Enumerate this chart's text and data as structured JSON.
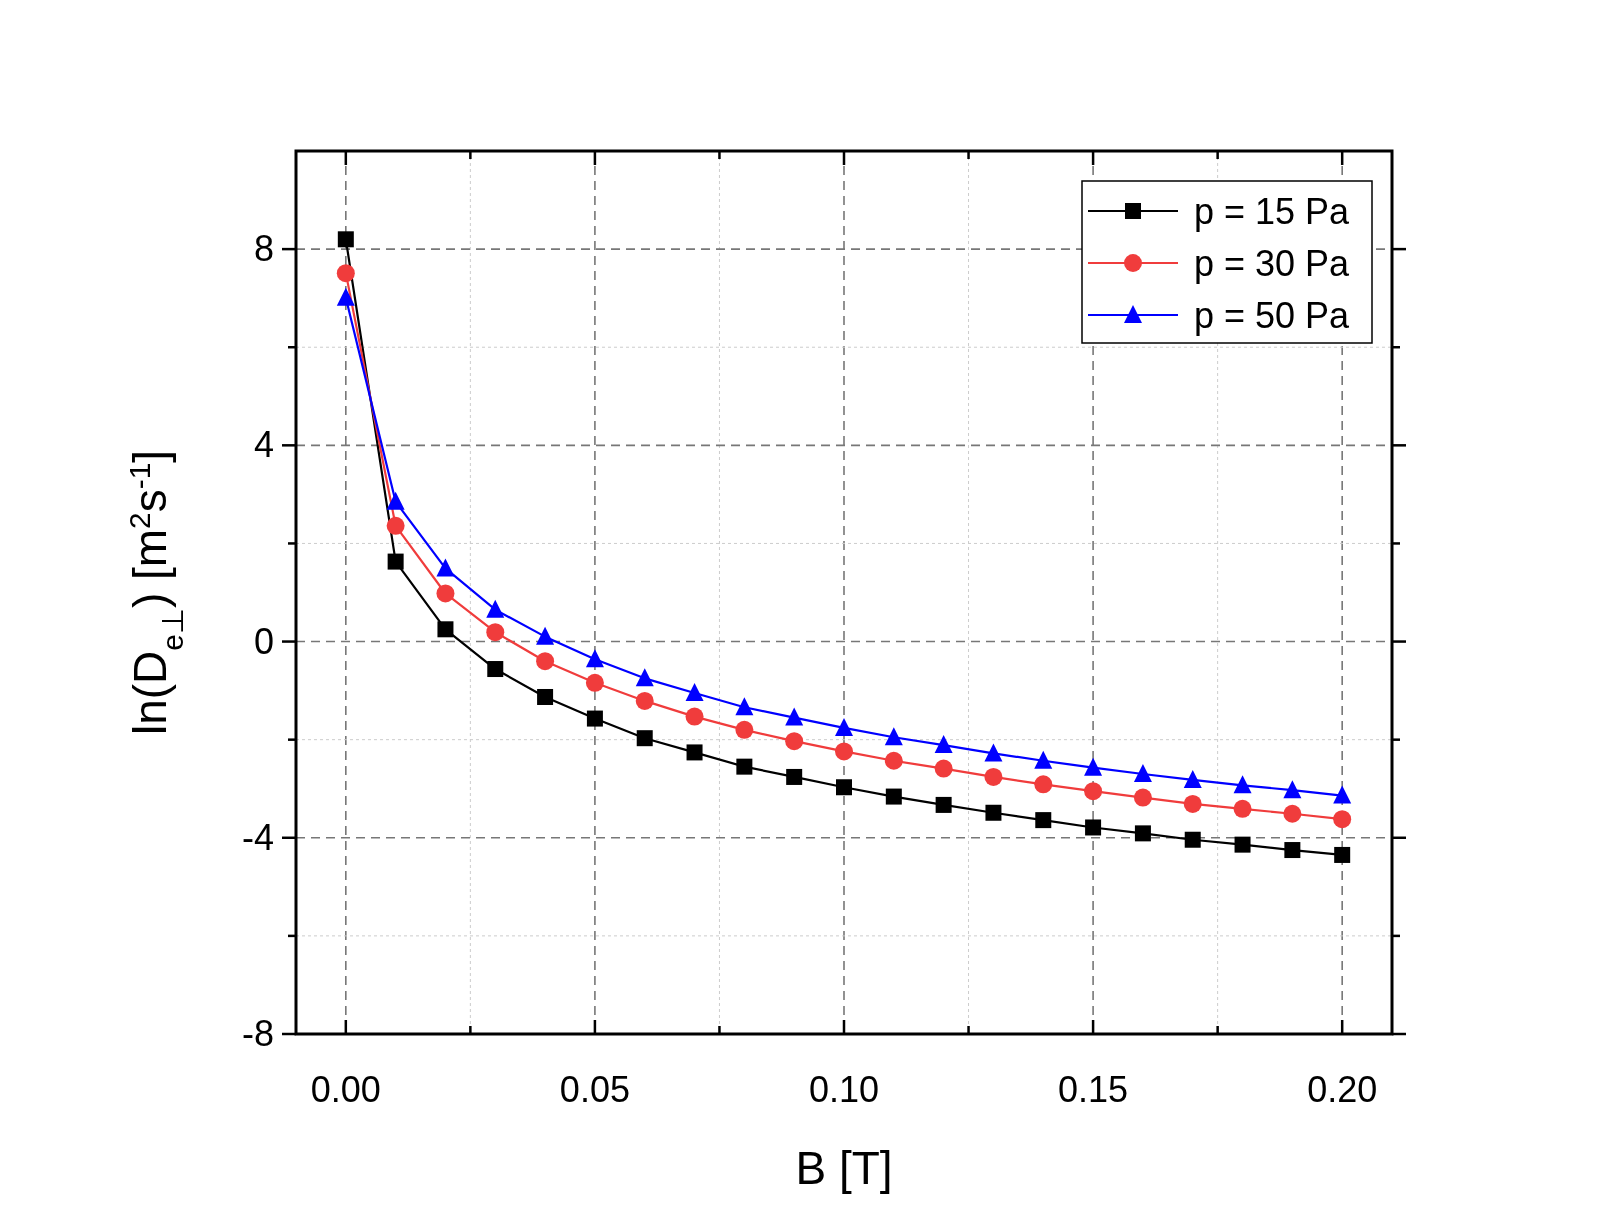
{
  "chart_data": {
    "type": "line",
    "xlabel": "B [T]",
    "ylabel": "ln(D$_{e⊥}$) [m$^{2}$s$^{-1}$]",
    "x": [
      0,
      0.01,
      0.02,
      0.03,
      0.04,
      0.05,
      0.06,
      0.07,
      0.08,
      0.09,
      0.1,
      0.11,
      0.12,
      0.13,
      0.14,
      0.15,
      0.16,
      0.17,
      0.18,
      0.19,
      0.2
    ],
    "series": [
      {
        "name": "p = 15 Pa",
        "color": "#000000",
        "marker": "square",
        "values": [
          8.2,
          1.63,
          0.25,
          -0.56,
          -1.13,
          -1.57,
          -1.97,
          -2.26,
          -2.55,
          -2.76,
          -2.97,
          -3.16,
          -3.33,
          -3.49,
          -3.64,
          -3.79,
          -3.91,
          -4.04,
          -4.14,
          -4.25,
          -4.35
        ]
      },
      {
        "name": "p = 30 Pa",
        "color": "#f03c3c",
        "marker": "circle",
        "values": [
          7.51,
          2.36,
          0.98,
          0.19,
          -0.4,
          -0.84,
          -1.21,
          -1.53,
          -1.8,
          -2.03,
          -2.24,
          -2.43,
          -2.59,
          -2.76,
          -2.91,
          -3.05,
          -3.18,
          -3.31,
          -3.41,
          -3.51,
          -3.62
        ]
      },
      {
        "name": "p = 50 Pa",
        "color": "#0000ff",
        "marker": "triangle",
        "values": [
          7.01,
          2.85,
          1.49,
          0.65,
          0.1,
          -0.36,
          -0.75,
          -1.05,
          -1.34,
          -1.55,
          -1.76,
          -1.95,
          -2.11,
          -2.28,
          -2.43,
          -2.57,
          -2.7,
          -2.82,
          -2.93,
          -3.03,
          -3.14
        ]
      }
    ],
    "xlim": [
      -0.01,
      0.21
    ],
    "xticks": [
      {
        "value": 0,
        "label": "0.00"
      },
      {
        "value": 0.025,
        "label": null
      },
      {
        "value": 0.05,
        "label": "0.05"
      },
      {
        "value": 0.075,
        "label": null
      },
      {
        "value": 0.1,
        "label": "0.10"
      },
      {
        "value": 0.125,
        "label": null
      },
      {
        "value": 0.15,
        "label": "0.15"
      },
      {
        "value": 0.175,
        "label": null
      },
      {
        "value": 0.2,
        "label": "0.20"
      }
    ],
    "ylim": [
      -8,
      10
    ],
    "yticks": [
      -8,
      {
        "value": -6,
        "label": null
      },
      -4,
      {
        "value": -2,
        "label": null
      },
      0,
      {
        "value": 2,
        "label": null
      },
      4,
      {
        "value": 6,
        "label": null
      },
      8
    ],
    "grid": true,
    "legend": "top right",
    "line_style": "solid"
  }
}
